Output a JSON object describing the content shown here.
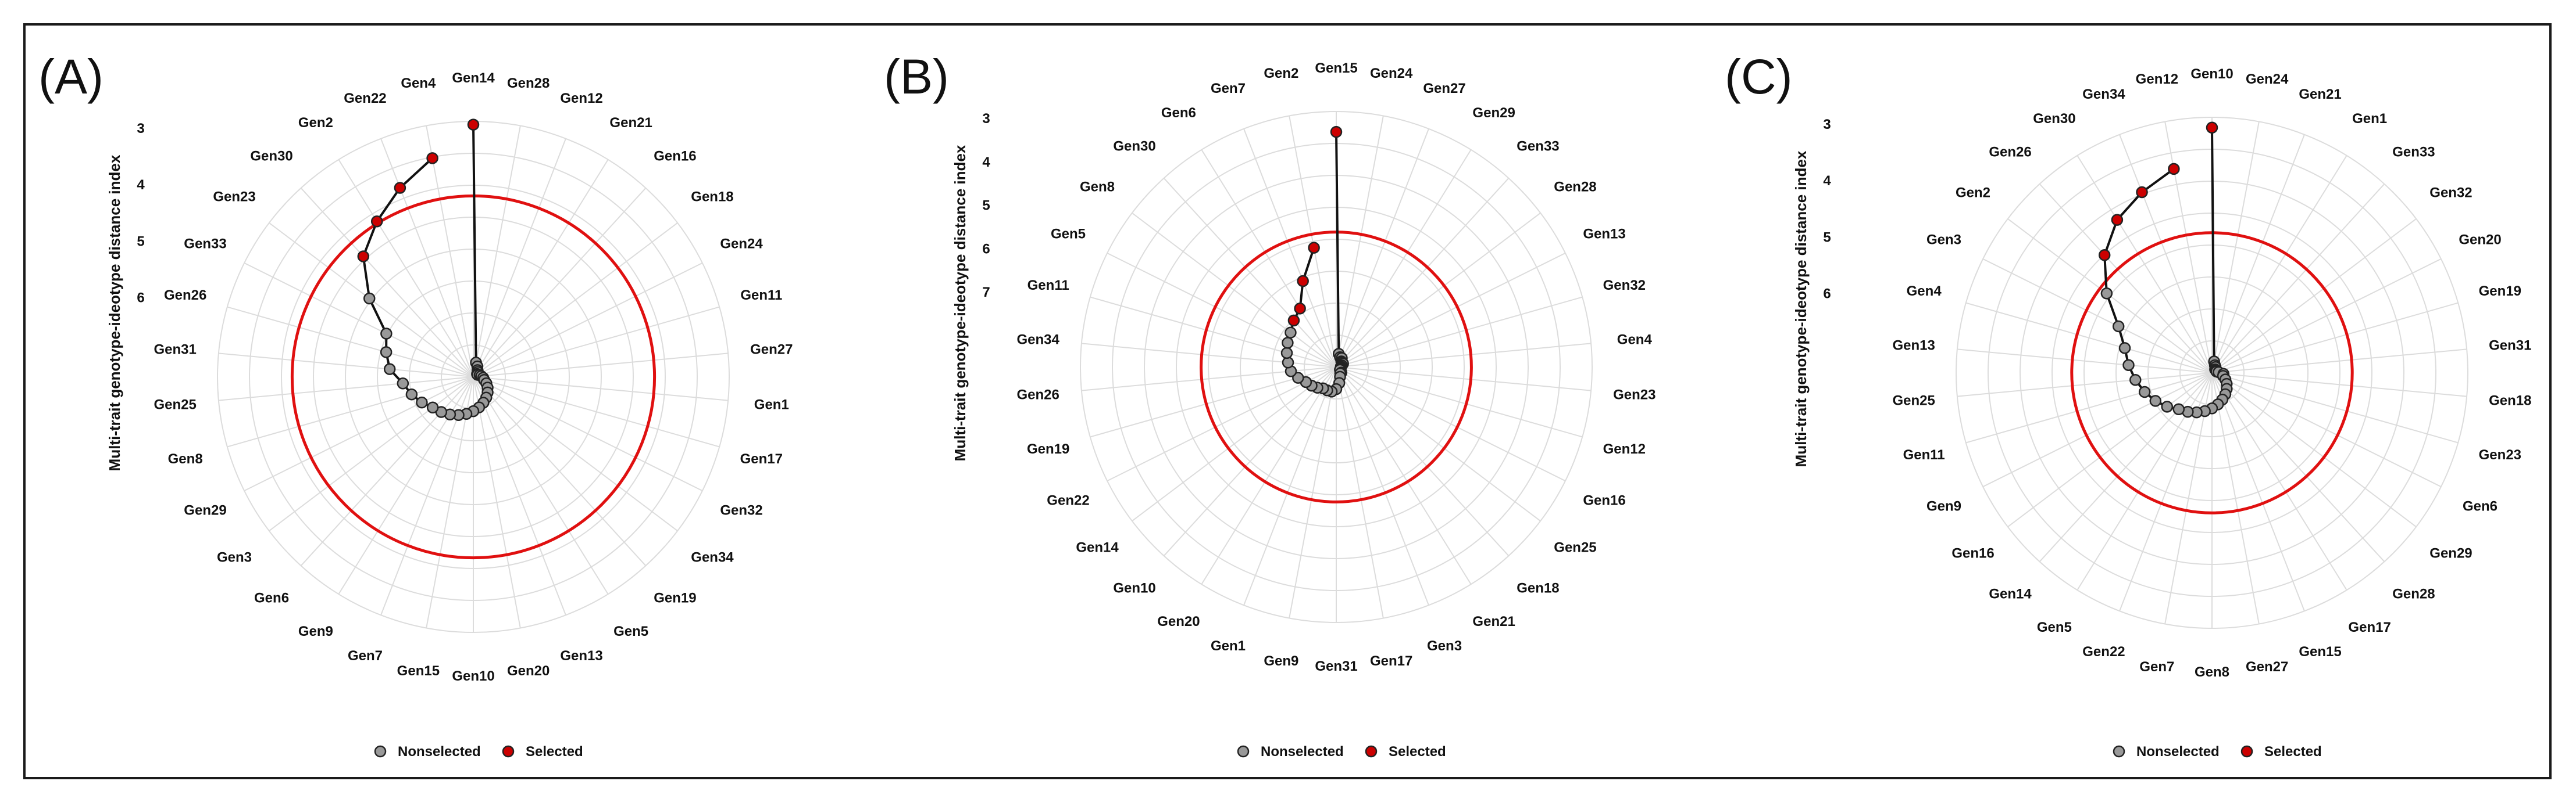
{
  "chart_data": [
    {
      "type": "radar",
      "panel_label": "(A)",
      "ylabel": "Multi-trait genotype-ideotype distance index",
      "axis_ticks": [
        "3",
        "4",
        "5",
        "6"
      ],
      "cutoff_color": "#e01010",
      "genotypes": [
        "Gen14",
        "Gen28",
        "Gen12",
        "Gen21",
        "Gen16",
        "Gen18",
        "Gen24",
        "Gen11",
        "Gen27",
        "Gen1",
        "Gen17",
        "Gen32",
        "Gen34",
        "Gen19",
        "Gen5",
        "Gen13",
        "Gen20",
        "Gen10",
        "Gen15",
        "Gen7",
        "Gen9",
        "Gen6",
        "Gen3",
        "Gen29",
        "Gen8",
        "Gen25",
        "Gen31",
        "Gen26",
        "Gen33",
        "Gen23",
        "Gen30",
        "Gen2",
        "Gen22",
        "Gen4"
      ],
      "mgidi": [
        2.85,
        6.45,
        6.5,
        6.55,
        6.57,
        6.6,
        6.6,
        6.57,
        6.55,
        6.52,
        6.5,
        6.45,
        6.4,
        6.35,
        6.3,
        6.25,
        6.2,
        6.15,
        6.1,
        6.05,
        6.0,
        5.95,
        5.9,
        5.8,
        5.7,
        5.6,
        5.4,
        5.3,
        5.2,
        4.7,
        4.2,
        3.9,
        3.6,
        3.3
      ],
      "selected": [
        "Gen14",
        "Gen4",
        "Gen22",
        "Gen2",
        "Gen30"
      ]
    },
    {
      "type": "radar",
      "panel_label": "(B)",
      "ylabel": "Multi-trait genotype-ideotype distance index",
      "axis_ticks": [
        "3",
        "4",
        "5",
        "6",
        "7"
      ],
      "cutoff_color": "#e01010",
      "genotypes": [
        "Gen15",
        "Gen24",
        "Gen27",
        "Gen29",
        "Gen33",
        "Gen28",
        "Gen13",
        "Gen32",
        "Gen4",
        "Gen23",
        "Gen12",
        "Gen16",
        "Gen25",
        "Gen18",
        "Gen21",
        "Gen3",
        "Gen17",
        "Gen31",
        "Gen9",
        "Gen1",
        "Gen20",
        "Gen10",
        "Gen14",
        "Gen22",
        "Gen19",
        "Gen26",
        "Gen34",
        "Gen11",
        "Gen5",
        "Gen8",
        "Gen30",
        "Gen6",
        "Gen7",
        "Gen2"
      ],
      "mgidi": [
        3.15,
        6.95,
        7.0,
        7.0,
        7.05,
        7.05,
        7.05,
        7.08,
        7.1,
        7.1,
        7.1,
        7.1,
        7.1,
        7.05,
        7.05,
        7.0,
        6.9,
        6.8,
        6.75,
        6.75,
        6.75,
        6.7,
        6.65,
        6.6,
        6.5,
        6.4,
        6.35,
        6.3,
        6.25,
        6.2,
        6.1,
        6.0,
        5.6,
        5.1
      ],
      "selected": [
        "Gen15",
        "Gen2",
        "Gen7",
        "Gen6",
        "Gen30"
      ]
    },
    {
      "type": "radar",
      "panel_label": "(C)",
      "ylabel": "Multi-trait genotype-ideotype distance index",
      "axis_ticks": [
        "3",
        "4",
        "5",
        "6"
      ],
      "cutoff_color": "#e01010",
      "genotypes": [
        "Gen10",
        "Gen24",
        "Gen21",
        "Gen1",
        "Gen33",
        "Gen32",
        "Gen20",
        "Gen19",
        "Gen31",
        "Gen18",
        "Gen23",
        "Gen6",
        "Gen29",
        "Gen28",
        "Gen17",
        "Gen15",
        "Gen27",
        "Gen8",
        "Gen7",
        "Gen22",
        "Gen5",
        "Gen14",
        "Gen16",
        "Gen9",
        "Gen11",
        "Gen25",
        "Gen13",
        "Gen4",
        "Gen3",
        "Gen2",
        "Gen26",
        "Gen30",
        "Gen34",
        "Gen12"
      ],
      "mgidi": [
        2.95,
        6.35,
        6.4,
        6.42,
        6.45,
        6.45,
        6.45,
        6.45,
        6.42,
        6.35,
        6.35,
        6.3,
        6.25,
        6.2,
        6.15,
        6.1,
        6.05,
        6.0,
        5.95,
        5.9,
        5.85,
        5.8,
        5.7,
        5.6,
        5.5,
        5.4,
        5.3,
        5.2,
        5.0,
        4.6,
        4.2,
        3.9,
        3.7,
        3.5
      ],
      "selected": [
        "Gen10",
        "Gen12",
        "Gen34",
        "Gen30",
        "Gen26"
      ]
    }
  ],
  "legend": {
    "nonselected_label": "Nonselected",
    "selected_label": "Selected",
    "nonselected_color": "#999999",
    "selected_color": "#cc0000"
  }
}
